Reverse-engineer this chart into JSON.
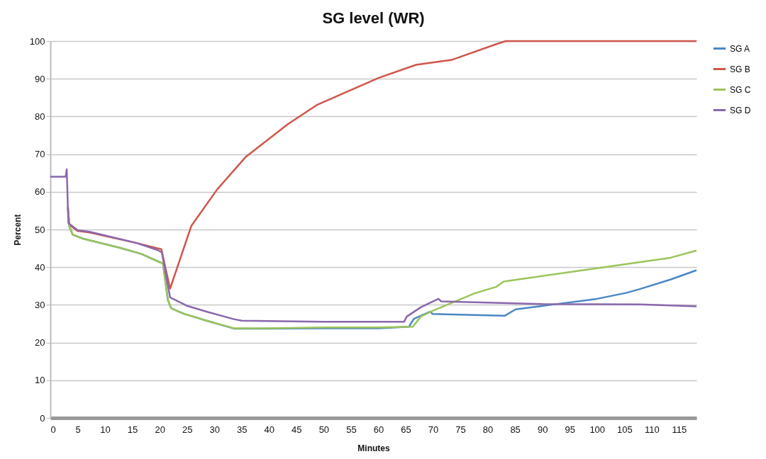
{
  "chart_data": {
    "type": "line",
    "title": "SG level (WR)",
    "xlabel": "Minutes",
    "ylabel": "Percent",
    "xlim": [
      0,
      118.2
    ],
    "ylim": [
      0,
      100
    ],
    "xticks": [
      0,
      5,
      10,
      15,
      20,
      25,
      30,
      35,
      40,
      45,
      50,
      55,
      60,
      65,
      70,
      75,
      80,
      85,
      90,
      95,
      100,
      105,
      110,
      115
    ],
    "yticks": [
      0,
      10,
      20,
      30,
      40,
      50,
      60,
      70,
      80,
      90,
      100
    ],
    "grid": "y",
    "legend": "right",
    "line_style": "solid",
    "marker": "none",
    "series": [
      {
        "name": "SG A",
        "color": "#4a86c5",
        "x": [
          3.2,
          3.5,
          4.1,
          5.9,
          12.8,
          16.7,
          19.9,
          20.6,
          21.5,
          22.1,
          24.5,
          28.8,
          33.6,
          40,
          50,
          60,
          65.6,
          66.5,
          69.5,
          69.9,
          75,
          83.1,
          85.1,
          92,
          100,
          105.4,
          107.6,
          113.4,
          118.2
        ],
        "values": [
          56,
          50.7,
          48.6,
          47.6,
          45.1,
          43.5,
          41.4,
          41,
          31.3,
          29.1,
          27.6,
          25.7,
          23.7,
          23.7,
          23.8,
          23.8,
          24.2,
          26.3,
          28.2,
          27.6,
          27.4,
          27.1,
          28.8,
          30.1,
          31.6,
          33.2,
          34.1,
          36.7,
          39.2
        ]
      },
      {
        "name": "SG B",
        "color": "#d0554b",
        "x": [
          3.2,
          3.5,
          5,
          7.2,
          15.8,
          19.7,
          20.3,
          21.9,
          25.8,
          30.5,
          35.7,
          43.5,
          48.7,
          60,
          66.9,
          73.4,
          81.6,
          83.3,
          118.2
        ],
        "values": [
          56,
          51.2,
          49.6,
          49.2,
          46.4,
          45,
          44.8,
          34.3,
          51,
          60.6,
          69.2,
          78,
          83,
          90.2,
          93.7,
          95,
          99.2,
          100,
          100
        ]
      },
      {
        "name": "SG C",
        "color": "#9bc45a",
        "x": [
          3.2,
          3.5,
          4.1,
          5.9,
          12.8,
          16.7,
          19.9,
          20.6,
          21.5,
          22.1,
          24.5,
          28.8,
          33.6,
          40,
          50,
          60,
          66.3,
          67.8,
          69.9,
          77.7,
          81.6,
          82.9,
          113.4,
          118.2
        ],
        "values": [
          56,
          50.7,
          48.6,
          47.6,
          45.1,
          43.5,
          41.4,
          41,
          31.3,
          29.1,
          27.6,
          25.7,
          23.8,
          23.8,
          24,
          24,
          24.2,
          26.9,
          28.4,
          33.1,
          34.8,
          36.2,
          42.5,
          44.4
        ]
      },
      {
        "name": "SG D",
        "color": "#8a67ad",
        "x": [
          0,
          2.8,
          3.0,
          3.2,
          3.3,
          5,
          7.2,
          15.8,
          19.7,
          20.4,
          21.9,
          24.9,
          28.8,
          33.6,
          35,
          50,
          60.8,
          64.7,
          65.2,
          67.8,
          71,
          71.5,
          90,
          108,
          118.2
        ],
        "values": [
          64,
          64,
          66,
          56,
          51.7,
          49.8,
          49.4,
          46.4,
          44.5,
          43.9,
          32,
          29.8,
          28.1,
          26.2,
          25.8,
          25.5,
          25.5,
          25.5,
          26.9,
          29.4,
          31.6,
          30.9,
          30.2,
          30.1,
          29.6
        ]
      }
    ]
  }
}
